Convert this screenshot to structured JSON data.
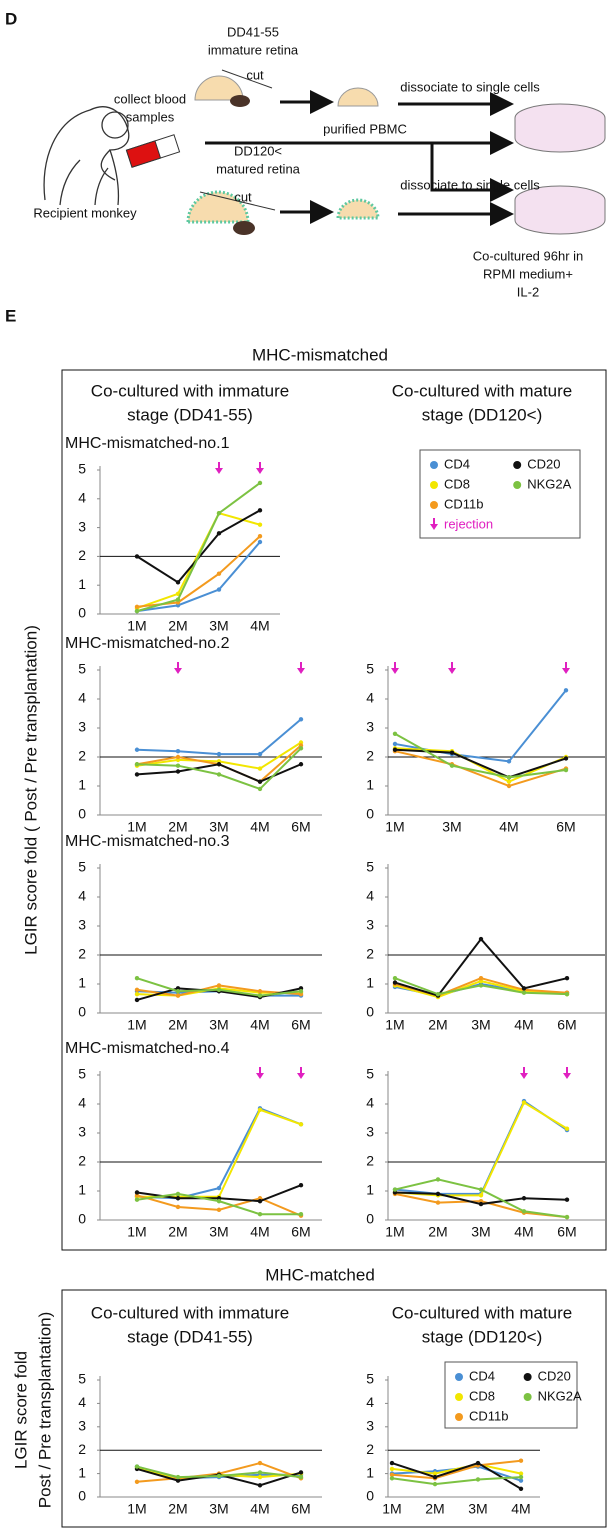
{
  "panel_d": {
    "label": "D",
    "early_stage": "DD41-55",
    "early_tissue": "immature retina",
    "cut_1": "cut",
    "dissociate_1": "dissociate to single cells",
    "blood": [
      "collect blood",
      "samples"
    ],
    "pbmc": "purified PBMC",
    "late_stage": "DD120<",
    "late_tissue": "matured retina",
    "cut_2": "cut",
    "dissociate_2": "dissociate to single cells",
    "recipient": "Recipient monkey",
    "culture": [
      "Co-cultured 96hr in",
      "RPMI medium+",
      "IL-2"
    ]
  },
  "panel_e": {
    "label": "E",
    "mismatched": {
      "title": "MHC-mismatched",
      "y_label": "LGIR  score fold  ( Post / Pre transplantation)",
      "columns": [
        [
          "Co-cultured with immature",
          "stage (DD41-55)"
        ],
        [
          "Co-cultured with mature",
          "stage (DD120<)"
        ]
      ]
    },
    "matched": {
      "title": "MHC-matched",
      "y_label": [
        "LGIR  score fold",
        "Post / Pre transplantation)"
      ],
      "columns": [
        [
          "Co-cultured with immature",
          "stage (DD41-55)"
        ],
        [
          "Co-cultured with mature",
          "stage (DD120<)"
        ]
      ]
    }
  },
  "chart_data": [
    {
      "type": "line",
      "title": "MHC-mismatched-no.1",
      "categories": [
        "1M",
        "2M",
        "3M",
        "4M"
      ],
      "series": [
        {
          "name": "CD4",
          "color": "#4a8fd4",
          "values": [
            0.1,
            0.3,
            0.85,
            2.5
          ]
        },
        {
          "name": "CD8",
          "color": "#f2e600",
          "values": [
            0.2,
            0.7,
            3.5,
            3.1
          ]
        },
        {
          "name": "CD11b",
          "color": "#f39a1e",
          "values": [
            0.25,
            0.4,
            1.4,
            2.7
          ]
        },
        {
          "name": "CD20",
          "color": "#111111",
          "values": [
            2.0,
            1.1,
            2.8,
            3.6
          ]
        },
        {
          "name": "NKG2A",
          "color": "#7cc242",
          "values": [
            0.1,
            0.5,
            3.5,
            4.55
          ]
        }
      ],
      "ylim": [
        0,
        5
      ],
      "yticks": [
        0,
        1,
        2,
        3,
        4,
        5
      ],
      "reference_line": 2,
      "rejections": [
        2,
        3
      ],
      "rejection_color": "#e020c0",
      "legend": "upper right",
      "rejection_label": "rejection"
    },
    {
      "type": "line",
      "title": "MHC-mismatched-no.2",
      "categories": [
        "1M",
        "2M",
        "3M",
        "4M",
        "6M"
      ],
      "series": [
        {
          "name": "CD4",
          "color": "#4a8fd4",
          "values": [
            2.25,
            2.2,
            2.1,
            2.1,
            3.3
          ]
        },
        {
          "name": "CD8",
          "color": "#f2e600",
          "values": [
            1.7,
            1.9,
            1.85,
            1.6,
            2.5
          ]
        },
        {
          "name": "CD11b",
          "color": "#f39a1e",
          "values": [
            1.75,
            2.0,
            1.75,
            1.15,
            2.4
          ]
        },
        {
          "name": "CD20",
          "color": "#111111",
          "values": [
            1.4,
            1.5,
            1.75,
            1.15,
            1.75
          ]
        },
        {
          "name": "NKG2A",
          "color": "#7cc242",
          "values": [
            1.75,
            1.7,
            1.4,
            0.9,
            2.3
          ]
        }
      ],
      "ylim": [
        0,
        5
      ],
      "yticks": [
        0,
        1,
        2,
        3,
        4,
        5
      ],
      "reference_line": 2,
      "rejections": [
        1,
        4
      ],
      "rejection_color": "#e020c0"
    },
    {
      "type": "line",
      "categories": [
        "1M",
        "3M",
        "4M",
        "6M"
      ],
      "series": [
        {
          "name": "CD4",
          "color": "#4a8fd4",
          "values": [
            2.45,
            2.1,
            1.85,
            4.3
          ]
        },
        {
          "name": "CD8",
          "color": "#f2e600",
          "values": [
            2.3,
            2.2,
            1.15,
            2.0
          ]
        },
        {
          "name": "CD11b",
          "color": "#f39a1e",
          "values": [
            2.2,
            1.75,
            1.0,
            1.6
          ]
        },
        {
          "name": "CD20",
          "color": "#111111",
          "values": [
            2.25,
            2.15,
            1.3,
            1.95
          ]
        },
        {
          "name": "NKG2A",
          "color": "#7cc242",
          "values": [
            2.8,
            1.7,
            1.3,
            1.55
          ]
        }
      ],
      "ylim": [
        0,
        5
      ],
      "yticks": [
        0,
        1,
        2,
        3,
        4,
        5
      ],
      "reference_line": 2,
      "rejections": [
        0,
        1,
        3
      ],
      "rejection_color": "#e020c0"
    },
    {
      "type": "line",
      "title": "MHC-mismatched-no.3",
      "categories": [
        "1M",
        "2M",
        "3M",
        "4M",
        "6M"
      ],
      "series": [
        {
          "name": "CD4",
          "color": "#4a8fd4",
          "values": [
            0.75,
            0.7,
            0.75,
            0.6,
            0.6
          ]
        },
        {
          "name": "CD8",
          "color": "#f2e600",
          "values": [
            0.65,
            0.6,
            0.85,
            0.7,
            0.7
          ]
        },
        {
          "name": "CD11b",
          "color": "#f39a1e",
          "values": [
            0.8,
            0.6,
            0.95,
            0.75,
            0.65
          ]
        },
        {
          "name": "CD20",
          "color": "#111111",
          "values": [
            0.45,
            0.85,
            0.75,
            0.55,
            0.85
          ]
        },
        {
          "name": "NKG2A",
          "color": "#7cc242",
          "values": [
            1.2,
            0.75,
            0.8,
            0.6,
            0.75
          ]
        }
      ],
      "ylim": [
        0,
        5
      ],
      "yticks": [
        0,
        1,
        2,
        3,
        4,
        5
      ],
      "reference_line": 2
    },
    {
      "type": "line",
      "categories": [
        "1M",
        "2M",
        "3M",
        "4M",
        "6M"
      ],
      "series": [
        {
          "name": "CD4",
          "color": "#4a8fd4",
          "values": [
            0.9,
            0.6,
            1.0,
            0.75,
            0.7
          ]
        },
        {
          "name": "CD8",
          "color": "#f2e600",
          "values": [
            0.95,
            0.55,
            1.1,
            0.75,
            0.65
          ]
        },
        {
          "name": "CD11b",
          "color": "#f39a1e",
          "values": [
            1.0,
            0.6,
            1.2,
            0.8,
            0.7
          ]
        },
        {
          "name": "CD20",
          "color": "#111111",
          "values": [
            1.05,
            0.6,
            2.55,
            0.85,
            1.2
          ]
        },
        {
          "name": "NKG2A",
          "color": "#7cc242",
          "values": [
            1.2,
            0.65,
            0.95,
            0.7,
            0.65
          ]
        }
      ],
      "ylim": [
        0,
        5
      ],
      "yticks": [
        0,
        1,
        2,
        3,
        4,
        5
      ],
      "reference_line": 2
    },
    {
      "type": "line",
      "title": "MHC-mismatched-no.4",
      "categories": [
        "1M",
        "2M",
        "3M",
        "4M",
        "6M"
      ],
      "series": [
        {
          "name": "CD4",
          "color": "#4a8fd4",
          "values": [
            0.8,
            0.75,
            1.1,
            3.85,
            3.3
          ]
        },
        {
          "name": "CD8",
          "color": "#f2e600",
          "values": [
            0.8,
            0.8,
            0.8,
            3.8,
            3.3
          ]
        },
        {
          "name": "CD11b",
          "color": "#f39a1e",
          "values": [
            0.85,
            0.45,
            0.35,
            0.75,
            0.15
          ]
        },
        {
          "name": "CD20",
          "color": "#111111",
          "values": [
            0.95,
            0.75,
            0.75,
            0.65,
            1.2
          ]
        },
        {
          "name": "NKG2A",
          "color": "#7cc242",
          "values": [
            0.7,
            0.9,
            0.65,
            0.2,
            0.2
          ]
        }
      ],
      "ylim": [
        0,
        5
      ],
      "yticks": [
        0,
        1,
        2,
        3,
        4,
        5
      ],
      "reference_line": 2,
      "rejections": [
        3,
        4
      ],
      "rejection_color": "#e020c0"
    },
    {
      "type": "line",
      "categories": [
        "1M",
        "2M",
        "3M",
        "4M",
        "6M"
      ],
      "series": [
        {
          "name": "CD4",
          "color": "#4a8fd4",
          "values": [
            1.05,
            0.9,
            0.9,
            4.1,
            3.1
          ]
        },
        {
          "name": "CD8",
          "color": "#f2e600",
          "values": [
            0.95,
            0.85,
            0.85,
            4.05,
            3.15
          ]
        },
        {
          "name": "CD11b",
          "color": "#f39a1e",
          "values": [
            0.9,
            0.6,
            0.65,
            0.25,
            0.1
          ]
        },
        {
          "name": "CD20",
          "color": "#111111",
          "values": [
            0.95,
            0.9,
            0.55,
            0.75,
            0.7
          ]
        },
        {
          "name": "NKG2A",
          "color": "#7cc242",
          "values": [
            1.05,
            1.4,
            1.05,
            0.3,
            0.1
          ]
        }
      ],
      "ylim": [
        0,
        5
      ],
      "yticks": [
        0,
        1,
        2,
        3,
        4,
        5
      ],
      "reference_line": 2,
      "rejections": [
        3,
        4
      ],
      "rejection_color": "#e020c0"
    },
    {
      "type": "line",
      "categories": [
        "1M",
        "2M",
        "3M",
        "4M",
        "6M"
      ],
      "series": [
        {
          "name": "CD4",
          "color": "#4a8fd4",
          "values": [
            1.3,
            0.8,
            0.85,
            0.95,
            0.95
          ]
        },
        {
          "name": "CD8",
          "color": "#f2e600",
          "values": [
            1.25,
            0.75,
            0.95,
            0.85,
            1.0
          ]
        },
        {
          "name": "CD11b",
          "color": "#f39a1e",
          "values": [
            0.65,
            0.8,
            1.0,
            1.45,
            0.8
          ]
        },
        {
          "name": "CD20",
          "color": "#111111",
          "values": [
            1.2,
            0.7,
            0.95,
            0.5,
            1.05
          ]
        },
        {
          "name": "NKG2A",
          "color": "#7cc242",
          "values": [
            1.3,
            0.85,
            0.9,
            1.05,
            0.85
          ]
        }
      ],
      "ylim": [
        0,
        5
      ],
      "yticks": [
        0,
        1,
        2,
        3,
        4,
        5
      ],
      "reference_line": 2
    },
    {
      "type": "line",
      "categories": [
        "1M",
        "2M",
        "3M",
        "4M"
      ],
      "series": [
        {
          "name": "CD4",
          "color": "#4a8fd4",
          "values": [
            1.0,
            1.1,
            1.3,
            0.7
          ]
        },
        {
          "name": "CD8",
          "color": "#f2e600",
          "values": [
            1.2,
            1.0,
            1.4,
            1.0
          ]
        },
        {
          "name": "CD11b",
          "color": "#f39a1e",
          "values": [
            0.95,
            0.8,
            1.35,
            1.55
          ]
        },
        {
          "name": "CD20",
          "color": "#111111",
          "values": [
            1.45,
            0.85,
            1.45,
            0.35
          ]
        },
        {
          "name": "NKG2A",
          "color": "#7cc242",
          "values": [
            0.8,
            0.55,
            0.75,
            0.85
          ]
        }
      ],
      "ylim": [
        0,
        5
      ],
      "yticks": [
        0,
        1,
        2,
        3,
        4,
        5
      ],
      "reference_line": 2,
      "legend": "upper right"
    }
  ]
}
